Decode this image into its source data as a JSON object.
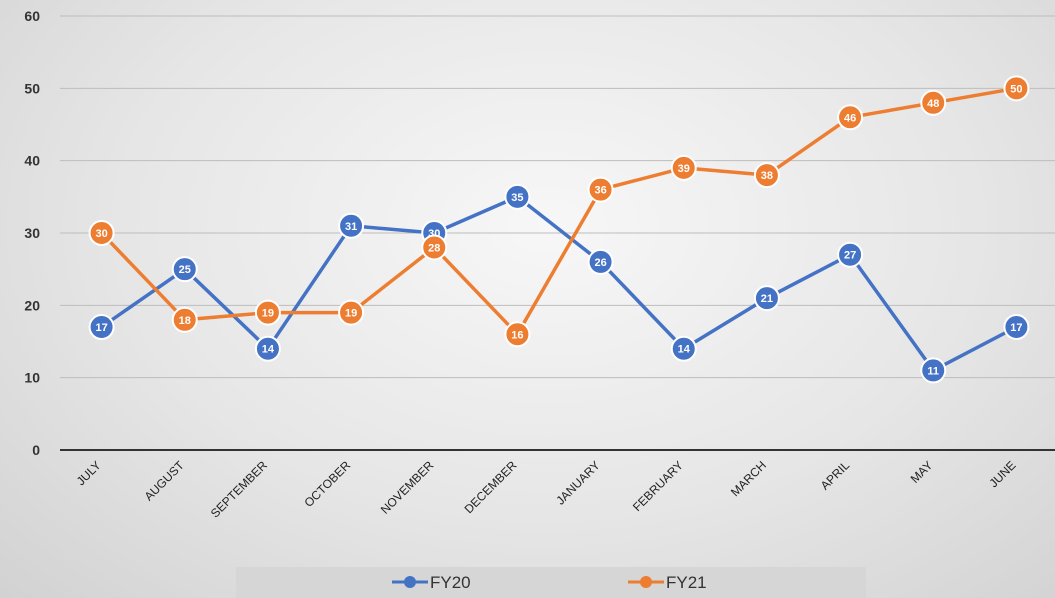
{
  "chart_data": {
    "type": "line",
    "categories": [
      "JULY",
      "AUGUST",
      "SEPTEMBER",
      "OCTOBER",
      "NOVEMBER",
      "DECEMBER",
      "JANUARY",
      "FEBRUARY",
      "MARCH",
      "APRIL",
      "MAY",
      "JUNE"
    ],
    "series": [
      {
        "name": "FY20",
        "color": "#4472c4",
        "values": [
          17,
          25,
          14,
          31,
          30,
          35,
          26,
          14,
          21,
          27,
          11,
          17
        ]
      },
      {
        "name": "FY21",
        "color": "#ed7d31",
        "values": [
          30,
          18,
          19,
          19,
          28,
          16,
          36,
          39,
          38,
          46,
          48,
          50
        ]
      }
    ],
    "yticks": [
      0,
      10,
      20,
      30,
      40,
      50,
      60
    ],
    "ylim": [
      0,
      60
    ],
    "grid": true,
    "data_labels": true,
    "legend_position": "bottom"
  }
}
